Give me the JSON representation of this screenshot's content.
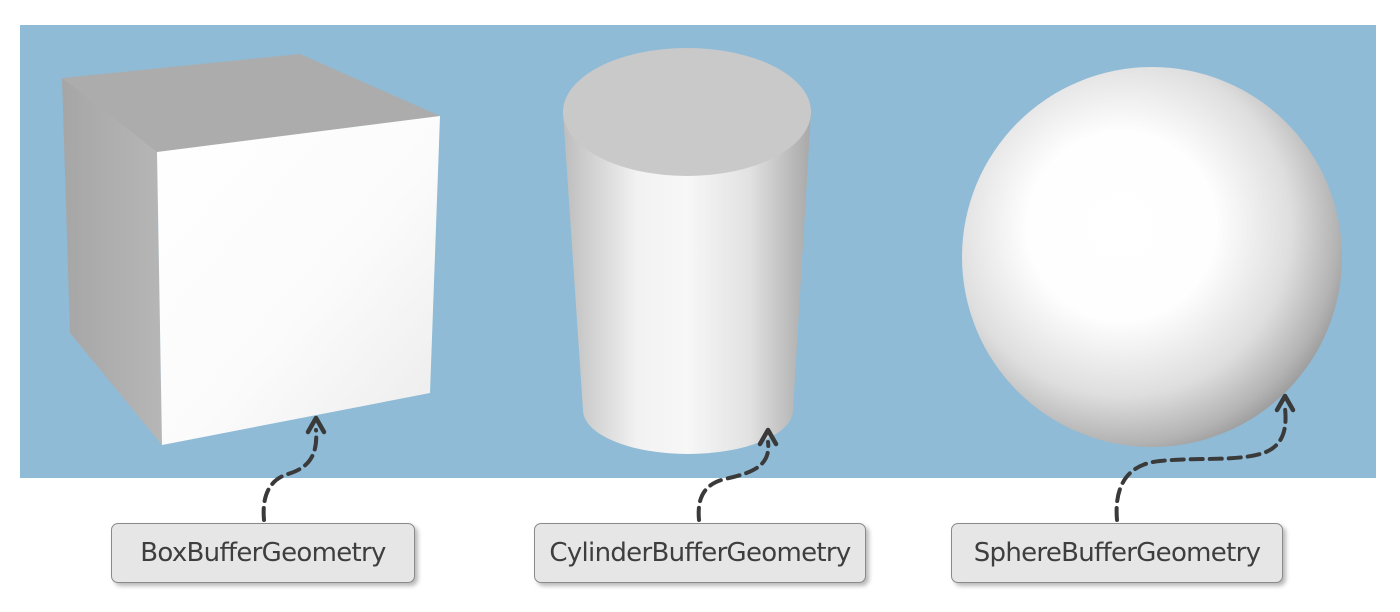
{
  "labels": {
    "box": "BoxBufferGeometry",
    "cylinder": "CylinderBufferGeometry",
    "sphere": "SphereBufferGeometry"
  },
  "colors": {
    "scene_background": "#8fbbd6",
    "label_background": "#e6e6e6",
    "label_border": "#8a8a8a",
    "arrow": "#3a3a3a"
  }
}
